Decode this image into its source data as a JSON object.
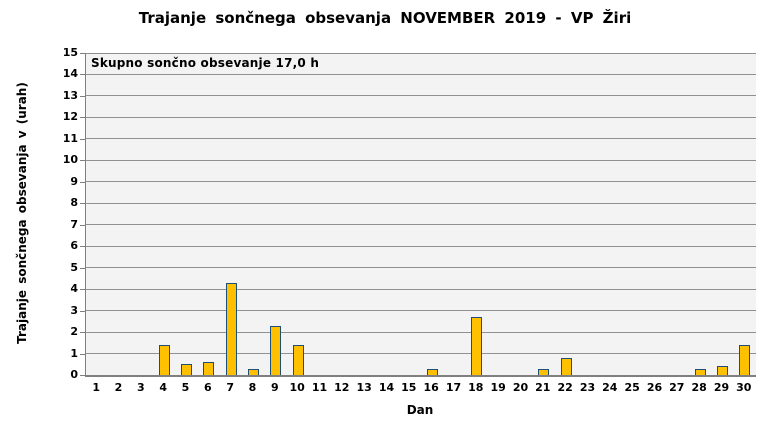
{
  "chart_data": {
    "type": "bar",
    "title": "Trajanje sončnega obsevanja NOVEMBER 2019 - VP Žiri",
    "annotation": "Skupno sončno obsevanje 17,0 h",
    "total_hours": "17,0",
    "xlabel": "Dan",
    "ylabel": "Trajanje sončnega obsevanja v (urah)",
    "categories": [
      "1",
      "2",
      "3",
      "4",
      "5",
      "6",
      "7",
      "8",
      "9",
      "10",
      "11",
      "12",
      "13",
      "14",
      "15",
      "16",
      "17",
      "18",
      "19",
      "20",
      "21",
      "22",
      "23",
      "24",
      "25",
      "26",
      "27",
      "28",
      "29",
      "30"
    ],
    "values": [
      0,
      0,
      0,
      1.4,
      0.5,
      0.6,
      4.3,
      0.3,
      2.3,
      1.4,
      0,
      0,
      0,
      0,
      0,
      0.3,
      0,
      2.7,
      0,
      0,
      0.3,
      0.8,
      0,
      0,
      0,
      0,
      0,
      0.3,
      0.4,
      1.4
    ],
    "ylim": [
      0,
      15
    ],
    "ytick_step": 1,
    "grid": "horizontal",
    "legend": false,
    "colors": {
      "bar_fill": "#FFC000",
      "bar_border": "#1F4E79",
      "plot_background": "#F3F3F3",
      "gridline": "#909090",
      "axis_line": "#7F7F7F",
      "text": "#000000",
      "page_background": "#FFFFFF"
    }
  }
}
